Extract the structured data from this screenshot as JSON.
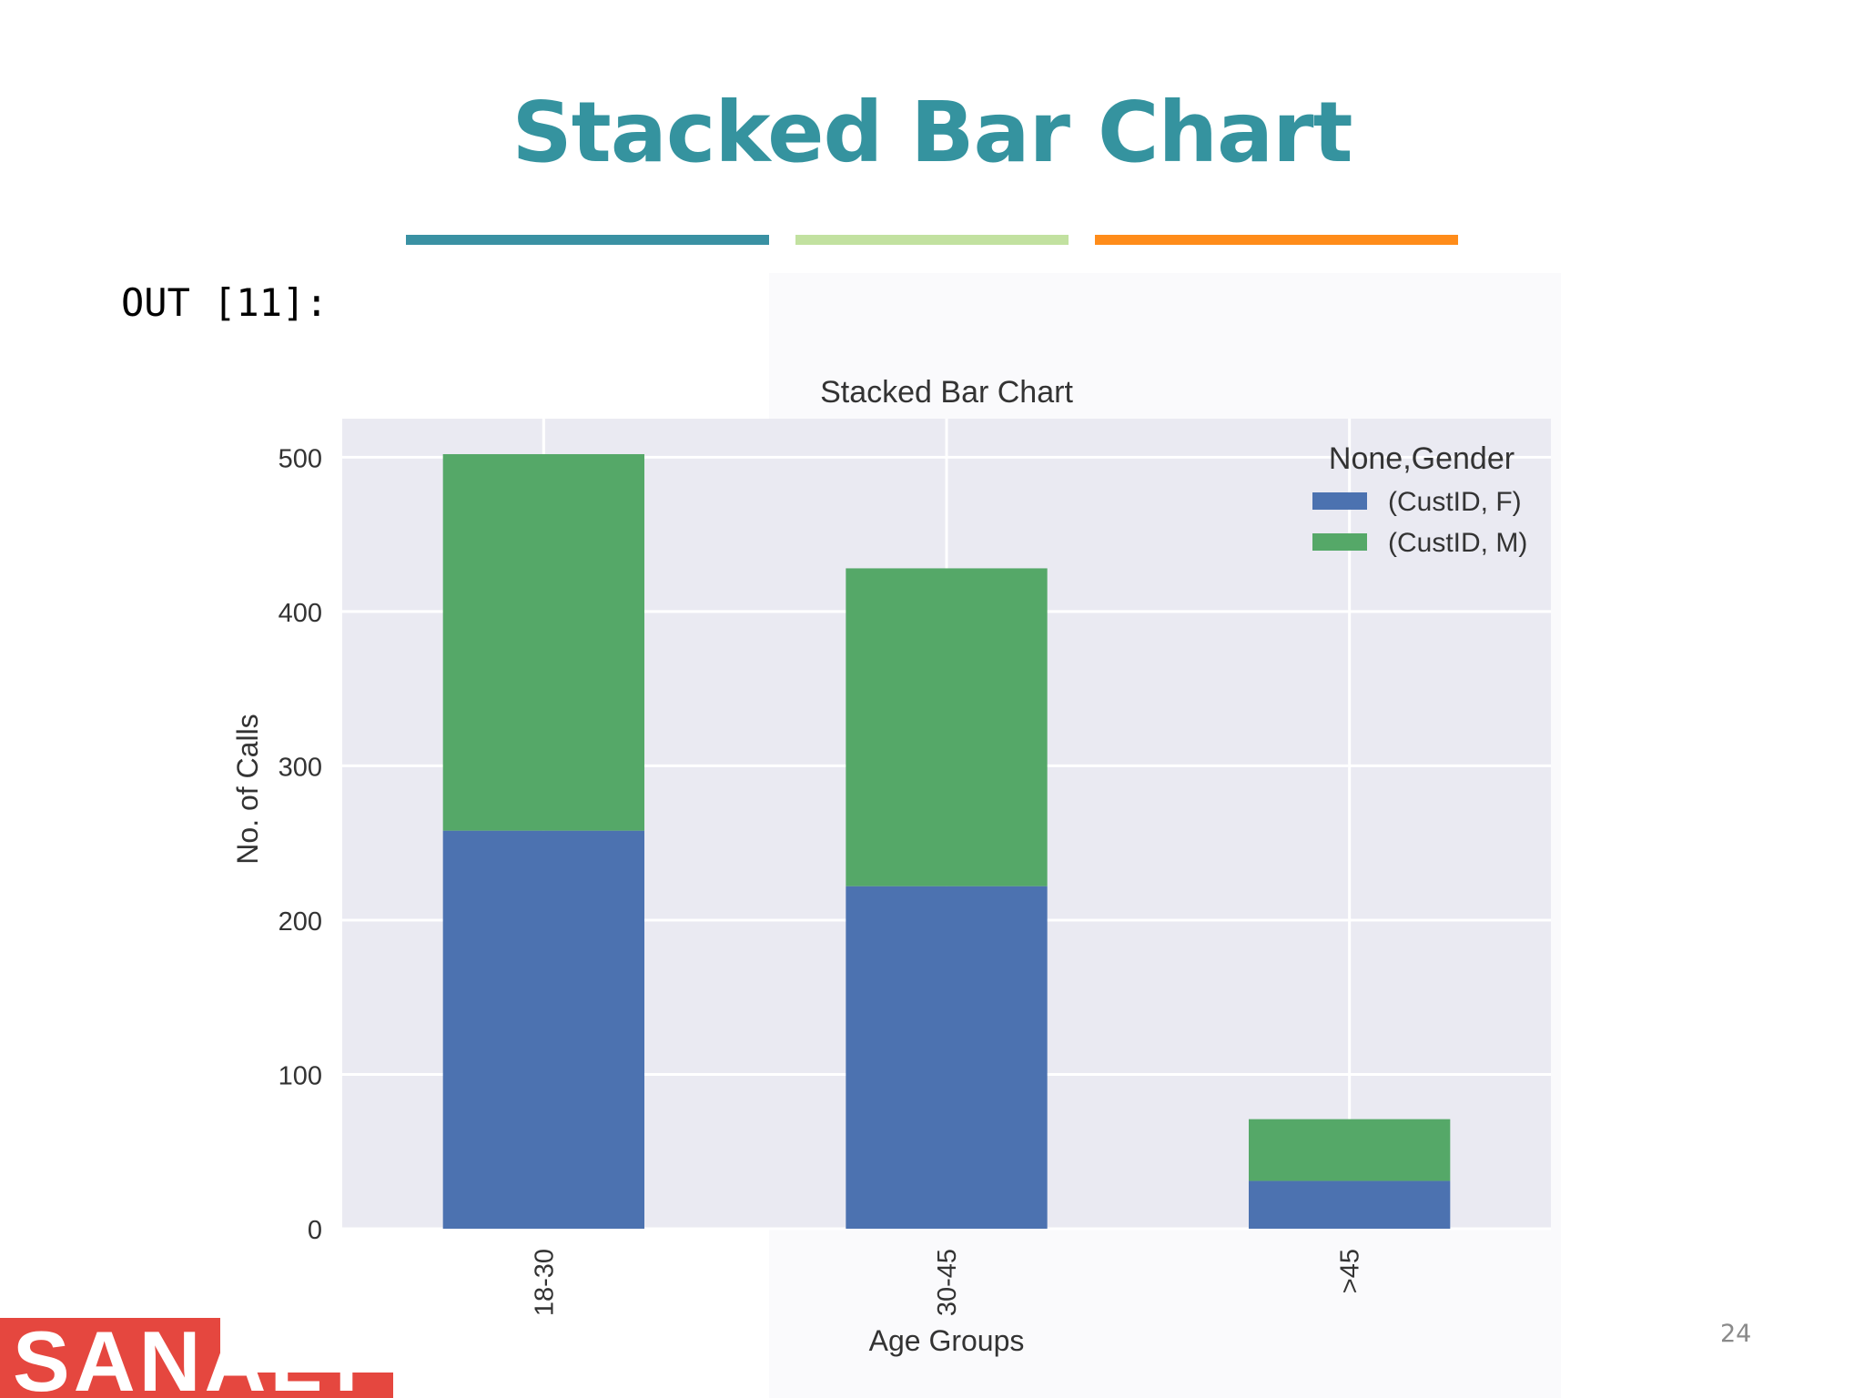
{
  "slide": {
    "title": "Stacked Bar Chart",
    "out_label": "OUT [11]:",
    "page_number": "24",
    "logo_text": "SANALYTICS",
    "accent_colors": [
      "#3a91a3",
      "#c2e1a0",
      "#ff8c1a"
    ]
  },
  "chart_data": {
    "type": "bar",
    "stacked": true,
    "title": "Stacked Bar Chart",
    "xlabel": "Age Groups",
    "ylabel": "No. of Calls",
    "categories": [
      "18-30",
      "30-45",
      ">45"
    ],
    "series": [
      {
        "name": "(CustID, F)",
        "values": [
          258,
          222,
          31
        ],
        "color": "#4c72b0"
      },
      {
        "name": "(CustID, M)",
        "values": [
          244,
          206,
          40
        ],
        "color": "#55a868"
      }
    ],
    "ylim": [
      0,
      525
    ],
    "yticks": [
      0,
      100,
      200,
      300,
      400,
      500
    ],
    "legend_title": "None,Gender",
    "legend_position": "top-right",
    "grid": true,
    "background_color": "#eaeaf2"
  }
}
